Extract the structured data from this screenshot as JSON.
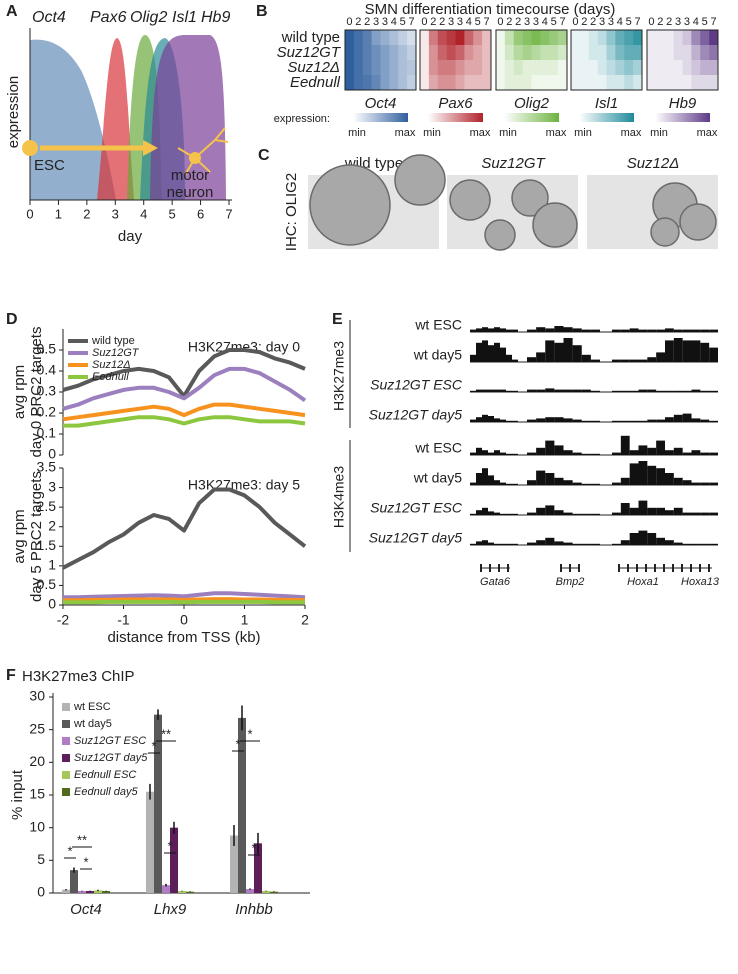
{
  "panel_a": {
    "letter": "A",
    "genes": [
      {
        "name": "Oct4",
        "color": "#3b6ea5"
      },
      {
        "name": "Pax6",
        "color": "#d9343a"
      },
      {
        "name": "Olig2",
        "color": "#6aa93c"
      },
      {
        "name": "Isl1",
        "color": "#2a8a96"
      },
      {
        "name": "Hb9",
        "color": "#7b3f98"
      }
    ],
    "ylabel": "expression",
    "xlabel": "day",
    "xlim": [
      0,
      7
    ],
    "xticks": [
      0,
      1,
      2,
      3,
      4,
      5,
      6,
      7
    ],
    "start_label": "ESC",
    "end_label": [
      "motor",
      "neuron"
    ],
    "arrow_color": "#f5c34a"
  },
  "panel_b": {
    "letter": "B",
    "title": "SMN differentiation timecourse (days)",
    "days": [
      "0",
      "2",
      "2",
      "3",
      "3",
      "4",
      "5",
      "7"
    ],
    "rows": [
      "wild type",
      "Suz12GT",
      "Suz12Δ",
      "Eednull"
    ],
    "legend_label": "expression:",
    "min_label": "min",
    "max_label": "max",
    "genes": [
      {
        "name": "Oct4",
        "color": "#2f5f9e",
        "values": [
          [
            1,
            0.9,
            0.8,
            0.6,
            0.5,
            0.4,
            0.3,
            0.2
          ],
          [
            1,
            0.9,
            0.8,
            0.7,
            0.6,
            0.5,
            0.4,
            0.3
          ],
          [
            1,
            0.9,
            0.8,
            0.7,
            0.6,
            0.5,
            0.4,
            0.35
          ],
          [
            1,
            0.9,
            0.85,
            0.75,
            0.6,
            0.5,
            0.4,
            0.3
          ]
        ]
      },
      {
        "name": "Pax6",
        "color": "#b0232b",
        "values": [
          [
            0.1,
            0.6,
            0.8,
            0.9,
            1,
            0.7,
            0.5,
            0.3
          ],
          [
            0.1,
            0.5,
            0.7,
            0.8,
            0.7,
            0.5,
            0.4,
            0.3
          ],
          [
            0.1,
            0.5,
            0.6,
            0.6,
            0.5,
            0.4,
            0.4,
            0.3
          ],
          [
            0.1,
            0.4,
            0.5,
            0.5,
            0.4,
            0.3,
            0.3,
            0.3
          ]
        ]
      },
      {
        "name": "Olig2",
        "color": "#6cb33f",
        "values": [
          [
            0.1,
            0.4,
            0.7,
            0.8,
            0.9,
            0.8,
            0.7,
            0.6
          ],
          [
            0.1,
            0.3,
            0.5,
            0.6,
            0.5,
            0.4,
            0.4,
            0.3
          ],
          [
            0.1,
            0.2,
            0.3,
            0.2,
            0.2,
            0.2,
            0.2,
            0.1
          ],
          [
            0.1,
            0.2,
            0.2,
            0.2,
            0.1,
            0.1,
            0.1,
            0.1
          ]
        ]
      },
      {
        "name": "Isl1",
        "color": "#1f8a9a",
        "values": [
          [
            0.1,
            0.1,
            0.2,
            0.3,
            0.5,
            0.7,
            0.8,
            0.9
          ],
          [
            0.1,
            0.1,
            0.2,
            0.2,
            0.4,
            0.6,
            0.7,
            0.7
          ],
          [
            0.1,
            0.1,
            0.1,
            0.2,
            0.3,
            0.4,
            0.5,
            0.4
          ],
          [
            0.1,
            0.1,
            0.1,
            0.1,
            0.2,
            0.2,
            0.3,
            0.2
          ]
        ]
      },
      {
        "name": "Hb9",
        "color": "#5e3a87",
        "values": [
          [
            0.1,
            0.1,
            0.1,
            0.2,
            0.3,
            0.6,
            0.8,
            1
          ],
          [
            0.1,
            0.1,
            0.1,
            0.2,
            0.2,
            0.4,
            0.6,
            0.7
          ],
          [
            0.1,
            0.1,
            0.1,
            0.1,
            0.2,
            0.3,
            0.4,
            0.4
          ],
          [
            0.1,
            0.1,
            0.1,
            0.1,
            0.1,
            0.2,
            0.2,
            0.2
          ]
        ]
      }
    ]
  },
  "panel_c": {
    "letter": "C",
    "ylabel": "IHC: OLIG2",
    "columns": [
      "wild type",
      "Suz12GT",
      "Suz12Δ"
    ]
  },
  "chart_data": [
    {
      "type": "line",
      "letter": "D",
      "annotation": "H3K27me3: day 0",
      "ylabel": [
        "avg rpm",
        "day 0 PRC2 targets"
      ],
      "legend": true,
      "x": [
        -2,
        -1.75,
        -1.5,
        -1.25,
        -1,
        -0.75,
        -0.5,
        -0.25,
        0,
        0.25,
        0.5,
        0.75,
        1,
        1.25,
        1.5,
        1.75,
        2
      ],
      "xlim": [
        -2,
        2
      ],
      "ylim": [
        0,
        0.6
      ],
      "yticks": [
        0,
        0.1,
        0.2,
        0.3,
        0.4,
        0.5
      ],
      "series": [
        {
          "name": "wild type",
          "color": "#595959",
          "values": [
            0.31,
            0.33,
            0.36,
            0.38,
            0.4,
            0.41,
            0.4,
            0.37,
            0.28,
            0.4,
            0.47,
            0.5,
            0.5,
            0.49,
            0.46,
            0.44,
            0.41
          ]
        },
        {
          "name": "Suz12GT",
          "color": "#9b7fbf",
          "values": [
            0.22,
            0.24,
            0.27,
            0.29,
            0.31,
            0.32,
            0.32,
            0.3,
            0.27,
            0.32,
            0.38,
            0.41,
            0.41,
            0.39,
            0.35,
            0.31,
            0.26
          ]
        },
        {
          "name": "Suz12Δ",
          "color": "#f7921e",
          "values": [
            0.17,
            0.18,
            0.19,
            0.2,
            0.21,
            0.22,
            0.23,
            0.22,
            0.19,
            0.22,
            0.24,
            0.24,
            0.23,
            0.22,
            0.21,
            0.2,
            0.19
          ]
        },
        {
          "name": "Eednull",
          "color": "#8dc63f",
          "values": [
            0.14,
            0.14,
            0.15,
            0.16,
            0.17,
            0.18,
            0.18,
            0.17,
            0.15,
            0.17,
            0.18,
            0.18,
            0.17,
            0.16,
            0.16,
            0.16,
            0.15
          ]
        }
      ]
    },
    {
      "type": "line",
      "annotation": "H3K27me3: day 5",
      "ylabel": [
        "avg rpm",
        "day 5 PRC2 targets"
      ],
      "xlabel": "distance from TSS (kb)",
      "legend": false,
      "x": [
        -2,
        -1.75,
        -1.5,
        -1.25,
        -1,
        -0.75,
        -0.5,
        -0.25,
        0,
        0.25,
        0.5,
        0.75,
        1,
        1.25,
        1.5,
        1.75,
        2
      ],
      "xlim": [
        -2,
        2
      ],
      "xticks": [
        -2,
        -1,
        0,
        1,
        2
      ],
      "ylim": [
        0,
        3.5
      ],
      "yticks": [
        0,
        0.5,
        1,
        1.5,
        2,
        2.5,
        3,
        3.5
      ],
      "series": [
        {
          "color": "#595959",
          "values": [
            0.95,
            1.15,
            1.35,
            1.6,
            1.8,
            2.1,
            2.3,
            2.2,
            1.9,
            2.6,
            2.95,
            2.95,
            2.8,
            2.5,
            2.1,
            1.8,
            1.5
          ]
        },
        {
          "color": "#9b7fbf",
          "values": [
            0.2,
            0.2,
            0.21,
            0.22,
            0.23,
            0.24,
            0.25,
            0.24,
            0.22,
            0.26,
            0.3,
            0.3,
            0.28,
            0.26,
            0.24,
            0.22,
            0.2
          ]
        },
        {
          "color": "#f7921e",
          "values": [
            0.12,
            0.12,
            0.13,
            0.13,
            0.14,
            0.14,
            0.14,
            0.14,
            0.13,
            0.14,
            0.15,
            0.15,
            0.14,
            0.14,
            0.13,
            0.13,
            0.12
          ]
        },
        {
          "color": "#8dc63f",
          "values": [
            0.07,
            0.07,
            0.07,
            0.08,
            0.08,
            0.08,
            0.08,
            0.08,
            0.07,
            0.08,
            0.08,
            0.08,
            0.08,
            0.08,
            0.07,
            0.07,
            0.07
          ]
        }
      ]
    },
    {
      "type": "bar",
      "letter": "F",
      "title": "H3K27me3 ChIP",
      "ylabel": "% input",
      "categories": [
        "Oct4",
        "Lhx9",
        "Inhbb"
      ],
      "ylim": [
        0,
        30
      ],
      "yticks": [
        0,
        5,
        10,
        15,
        20,
        25,
        30
      ],
      "series": [
        {
          "name": "wt ESC",
          "color": "#b3b3b3",
          "values": [
            0.5,
            15.5,
            8.8
          ],
          "errors": [
            0.1,
            1.2,
            1.6
          ]
        },
        {
          "name": "wt day5",
          "color": "#595959",
          "values": [
            3.5,
            27.3,
            26.8
          ],
          "errors": [
            0.4,
            0.8,
            1.9
          ]
        },
        {
          "name": "Suz12GT ESC",
          "color": "#b07cc6",
          "values": [
            0.3,
            1.2,
            0.6
          ],
          "errors": [
            0.05,
            0.2,
            0.1
          ]
        },
        {
          "name": "Suz12GT day5",
          "color": "#5c1f5a",
          "values": [
            0.3,
            10,
            7.6
          ],
          "errors": [
            0.05,
            0.9,
            1.6
          ]
        },
        {
          "name": "Eednull ESC",
          "color": "#a5c85a",
          "values": [
            0.4,
            0.3,
            0.3
          ],
          "errors": [
            0.1,
            0.05,
            0.05
          ]
        },
        {
          "name": "Eednull day5",
          "color": "#4f6b1e",
          "values": [
            0.3,
            0.2,
            0.2
          ],
          "errors": [
            0.05,
            0.05,
            0.05
          ]
        }
      ],
      "annotations": [
        "*",
        "**",
        "*",
        "*",
        "**",
        "*",
        "*",
        "*",
        "*"
      ]
    }
  ],
  "panel_e": {
    "letter": "E",
    "groups": [
      "H3K27me3",
      "H3K4me3"
    ],
    "genes": [
      "Gata6",
      "Bmp2",
      "Hoxa1",
      "Hoxa13"
    ],
    "tracks": [
      {
        "label": "wt ESC",
        "signal": [
          [
            0.1,
            0.15,
            0.2,
            0.15,
            0.2,
            0.15,
            0.1,
            0.1
          ],
          [
            0.1,
            0.2,
            0.15,
            0.25,
            0.2,
            0.15,
            0.1,
            0.1
          ],
          [
            0.1,
            0.1,
            0.15,
            0.1,
            0.1,
            0.1,
            0.15,
            0.1,
            0.1,
            0.1,
            0.1,
            0.1
          ]
        ]
      },
      {
        "label": "wt day5",
        "signal": [
          [
            0.3,
            0.8,
            0.9,
            0.7,
            0.8,
            0.6,
            0.3,
            0.1
          ],
          [
            0.2,
            0.4,
            0.9,
            0.8,
            1,
            0.7,
            0.3,
            0.1
          ],
          [
            0.1,
            0.1,
            0.1,
            0.1,
            0.2,
            0.4,
            0.9,
            1,
            0.9,
            0.9,
            0.8,
            0.6
          ]
        ]
      },
      {
        "label": "Suz12GT ESC",
        "signal": [
          [
            0.05,
            0.1,
            0.1,
            0.1,
            0.1,
            0.1,
            0.05,
            0.05
          ],
          [
            0.1,
            0.1,
            0.15,
            0.1,
            0.1,
            0.1,
            0.1,
            0.05
          ],
          [
            0.05,
            0.05,
            0.05,
            0.1,
            0.1,
            0.05,
            0.05,
            0.05,
            0.05,
            0.1,
            0.05,
            0.05
          ]
        ]
      },
      {
        "label": "Suz12GT day5",
        "signal": [
          [
            0.1,
            0.2,
            0.3,
            0.25,
            0.15,
            0.1,
            0.05,
            0.05
          ],
          [
            0.1,
            0.15,
            0.2,
            0.2,
            0.15,
            0.1,
            0.05,
            0.05
          ],
          [
            0.05,
            0.05,
            0.05,
            0.05,
            0.1,
            0.1,
            0.2,
            0.3,
            0.35,
            0.15,
            0.1,
            0.05
          ]
        ]
      },
      {
        "label": "wt ESC",
        "signal": [
          [
            0.1,
            0.3,
            0.2,
            0.1,
            0.2,
            0.1,
            0.05,
            0.05
          ],
          [
            0.1,
            0.3,
            0.6,
            0.4,
            0.2,
            0.1,
            0.05,
            0.05
          ],
          [
            0.1,
            0.8,
            0.2,
            0.4,
            0.3,
            0.6,
            0.2,
            0.3,
            0.1,
            0.2,
            0.1,
            0.1
          ]
        ]
      },
      {
        "label": "wt day5",
        "signal": [
          [
            0.1,
            0.5,
            0.7,
            0.4,
            0.2,
            0.1,
            0.05,
            0.05
          ],
          [
            0.2,
            0.6,
            0.5,
            0.3,
            0.2,
            0.1,
            0.05,
            0.05
          ],
          [
            0.1,
            0.3,
            0.9,
            1,
            0.8,
            0.7,
            0.5,
            0.3,
            0.2,
            0.1,
            0.1,
            0.1
          ]
        ]
      },
      {
        "label": "Suz12GT ESC",
        "signal": [
          [
            0.05,
            0.2,
            0.3,
            0.15,
            0.1,
            0.05,
            0.05,
            0.05
          ],
          [
            0.1,
            0.3,
            0.4,
            0.2,
            0.1,
            0.05,
            0.05,
            0.05
          ],
          [
            0.1,
            0.5,
            0.3,
            0.6,
            0.3,
            0.3,
            0.2,
            0.3,
            0.1,
            0.1,
            0.1,
            0.1
          ]
        ]
      },
      {
        "label": "Suz12GT day5",
        "signal": [
          [
            0.05,
            0.15,
            0.2,
            0.1,
            0.05,
            0.05,
            0.05,
            0.05
          ],
          [
            0.1,
            0.2,
            0.3,
            0.15,
            0.1,
            0.05,
            0.05,
            0.05
          ],
          [
            0.05,
            0.2,
            0.5,
            0.6,
            0.5,
            0.3,
            0.2,
            0.1,
            0.05,
            0.05,
            0.05,
            0.05
          ]
        ]
      }
    ]
  }
}
